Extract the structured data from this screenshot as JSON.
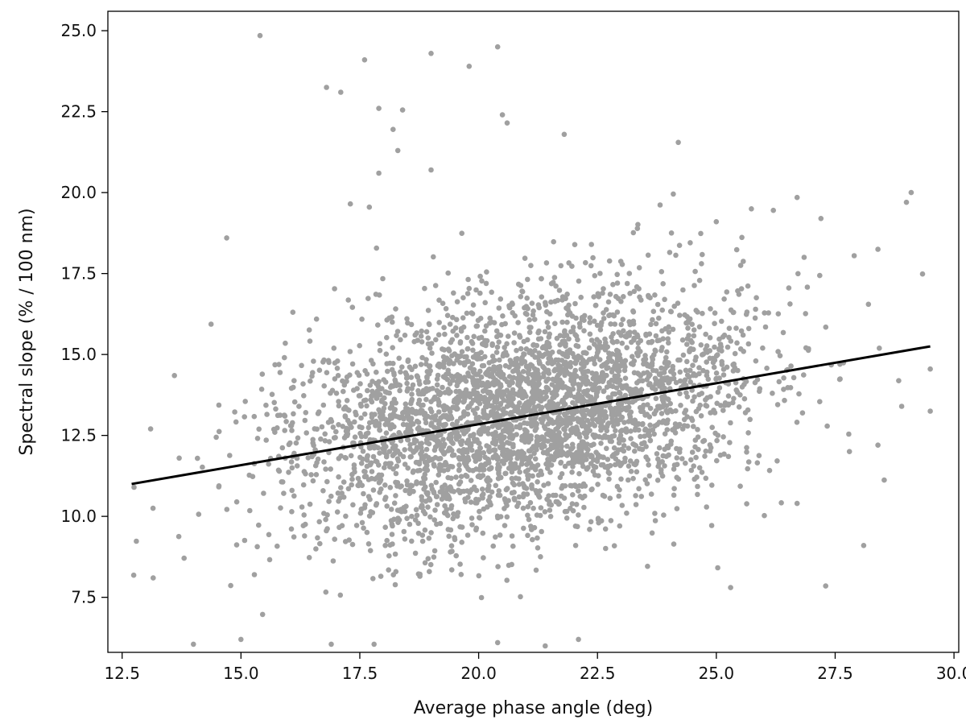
{
  "chart_data": {
    "type": "scatter",
    "title": "",
    "xlabel": "Average phase angle (deg)",
    "ylabel": "Spectral slope (% / 100 nm)",
    "xlim": [
      12.2,
      30.1
    ],
    "ylim": [
      5.8,
      25.6
    ],
    "x_ticks": [
      12.5,
      15.0,
      17.5,
      20.0,
      22.5,
      25.0,
      27.5,
      30.0
    ],
    "x_tick_labels": [
      "12.5",
      "15.0",
      "17.5",
      "20.0",
      "22.5",
      "25.0",
      "27.5",
      "30.0"
    ],
    "y_ticks": [
      7.5,
      10.0,
      12.5,
      15.0,
      17.5,
      20.0,
      22.5,
      25.0
    ],
    "y_tick_labels": [
      "7.5",
      "10.0",
      "12.5",
      "15.0",
      "17.5",
      "20.0",
      "22.5",
      "25.0"
    ],
    "grid": false,
    "legend": "none",
    "point_color": "#a0a0a0",
    "fit_line_color": "#000000",
    "fit_line": {
      "x": [
        12.7,
        29.5
      ],
      "y": [
        11.0,
        15.25
      ]
    },
    "cloud": {
      "n": 3600,
      "mean_x": 20.9,
      "mean_y": 13.2,
      "sd_x": 2.4,
      "sd_y": 1.75,
      "x_range": [
        12.7,
        29.6
      ],
      "y_range": [
        6.0,
        20.1
      ]
    },
    "points": [
      {
        "x": 15.4,
        "y": 24.85
      },
      {
        "x": 17.6,
        "y": 24.1
      },
      {
        "x": 19.0,
        "y": 24.3
      },
      {
        "x": 20.4,
        "y": 24.5
      },
      {
        "x": 19.8,
        "y": 23.9
      },
      {
        "x": 16.8,
        "y": 23.25
      },
      {
        "x": 17.1,
        "y": 23.1
      },
      {
        "x": 17.9,
        "y": 22.6
      },
      {
        "x": 18.4,
        "y": 22.55
      },
      {
        "x": 20.5,
        "y": 22.4
      },
      {
        "x": 20.6,
        "y": 22.15
      },
      {
        "x": 18.2,
        "y": 21.95
      },
      {
        "x": 21.8,
        "y": 21.8
      },
      {
        "x": 24.2,
        "y": 21.55
      },
      {
        "x": 18.3,
        "y": 21.3
      },
      {
        "x": 19.0,
        "y": 20.7
      },
      {
        "x": 17.9,
        "y": 20.6
      },
      {
        "x": 29.1,
        "y": 20.0
      },
      {
        "x": 29.0,
        "y": 19.7
      },
      {
        "x": 26.7,
        "y": 19.85
      },
      {
        "x": 17.3,
        "y": 19.65
      },
      {
        "x": 17.7,
        "y": 19.55
      },
      {
        "x": 27.2,
        "y": 19.2
      },
      {
        "x": 25.0,
        "y": 19.1
      },
      {
        "x": 26.2,
        "y": 19.45
      },
      {
        "x": 14.7,
        "y": 18.6
      },
      {
        "x": 14.0,
        "y": 6.05
      },
      {
        "x": 12.75,
        "y": 10.9
      },
      {
        "x": 13.15,
        "y": 10.25
      },
      {
        "x": 13.1,
        "y": 12.7
      },
      {
        "x": 13.6,
        "y": 14.35
      },
      {
        "x": 13.7,
        "y": 11.8
      },
      {
        "x": 28.2,
        "y": 16.55
      },
      {
        "x": 28.4,
        "y": 18.25
      },
      {
        "x": 27.9,
        "y": 18.05
      },
      {
        "x": 29.5,
        "y": 14.55
      },
      {
        "x": 29.5,
        "y": 13.25
      },
      {
        "x": 28.9,
        "y": 13.4
      },
      {
        "x": 28.1,
        "y": 9.1
      },
      {
        "x": 27.3,
        "y": 7.85
      },
      {
        "x": 25.3,
        "y": 7.8
      },
      {
        "x": 28.4,
        "y": 12.2
      },
      {
        "x": 27.8,
        "y": 12.0
      },
      {
        "x": 27.6,
        "y": 14.7
      },
      {
        "x": 26.7,
        "y": 10.4
      },
      {
        "x": 20.4,
        "y": 6.1
      },
      {
        "x": 21.4,
        "y": 6.0
      },
      {
        "x": 22.1,
        "y": 6.2
      },
      {
        "x": 17.8,
        "y": 6.05
      },
      {
        "x": 16.9,
        "y": 6.05
      },
      {
        "x": 15.0,
        "y": 6.2
      }
    ]
  }
}
